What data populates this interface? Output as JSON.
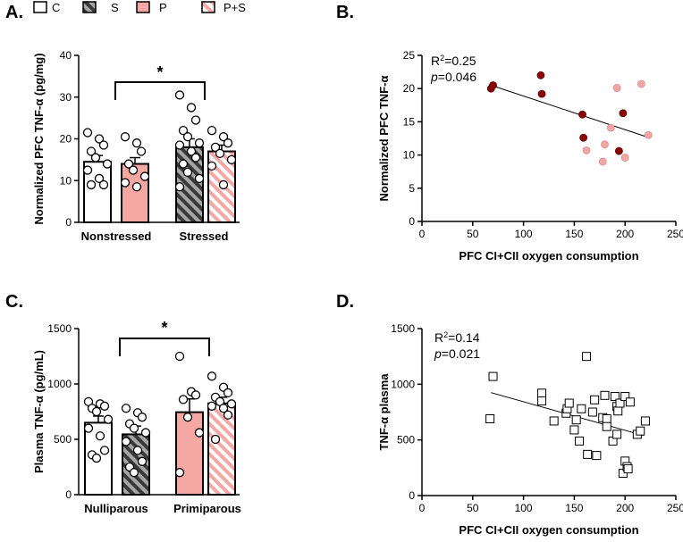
{
  "legend": [
    {
      "label": "C",
      "fill": "#ffffff",
      "pattern": "none"
    },
    {
      "label": "S",
      "fill": "#a6a6a6",
      "pattern": "hatch-dark"
    },
    {
      "label": "P",
      "fill": "#f4a7a3",
      "pattern": "none"
    },
    {
      "label": "P+S",
      "fill": "#f7b6b2",
      "pattern": "hatch-light"
    }
  ],
  "colors": {
    "dark_red": "#8b0000",
    "light_pink": "#f3a6a6",
    "salmon": "#f4a7a3",
    "grey": "#a6a6a6"
  },
  "chart_data": [
    {
      "panel": "A.",
      "type": "bar",
      "ylabel": "Normalized PFC TNF-α (pg/mg)",
      "ylim": [
        0,
        40
      ],
      "yticks": [
        0,
        10,
        20,
        30,
        40
      ],
      "groups": [
        "Nonstressed",
        "Stressed"
      ],
      "significance": "*",
      "bars": [
        {
          "group": "Nonstressed",
          "series": "C",
          "mean": 14.5,
          "sem": 1.5,
          "points": [
            21.5,
            20.0,
            18.5,
            17.0,
            15.5,
            14.0,
            12.5,
            10.5,
            9.0,
            9.0
          ]
        },
        {
          "group": "Nonstressed",
          "series": "P",
          "mean": 14.0,
          "sem": 1.5,
          "points": [
            20.5,
            19.0,
            17.0,
            14.0,
            12.5,
            11.0,
            9.5,
            8.5
          ]
        },
        {
          "group": "Stressed",
          "series": "S",
          "mean": 18.0,
          "sem": 2.0,
          "points": [
            30.5,
            27.5,
            24.5,
            22.0,
            20.5,
            19.0,
            18.5,
            17.0,
            15.5,
            14.0,
            12.0,
            10.5,
            8.5
          ]
        },
        {
          "group": "Stressed",
          "series": "P+S",
          "mean": 17.0,
          "sem": 1.5,
          "points": [
            22.0,
            20.5,
            19.0,
            18.0,
            16.5,
            15.0,
            13.5,
            9.0
          ]
        }
      ]
    },
    {
      "panel": "B.",
      "type": "scatter",
      "xlabel": "PFC CI+CII oxygen consumption",
      "ylabel": "Normalized PFC TNF-α",
      "xlim": [
        0,
        250
      ],
      "ylim": [
        0,
        25
      ],
      "xticks": [
        0,
        50,
        100,
        150,
        200,
        250
      ],
      "yticks": [
        0,
        5,
        10,
        15,
        20,
        25
      ],
      "stat_r2": "0.25",
      "stat_p": "0.046",
      "fit": {
        "x": [
          68,
          222
        ],
        "y": [
          20.5,
          12.7
        ]
      },
      "series": [
        {
          "name": "dark",
          "color": "#8b0000",
          "x": [
            68,
            70,
            117,
            118,
            158,
            159,
            194,
            198
          ],
          "y": [
            20.0,
            20.5,
            22.0,
            19.2,
            16.1,
            12.6,
            10.6,
            16.3
          ]
        },
        {
          "name": "light",
          "color": "#f3a6a6",
          "x": [
            162,
            178,
            180,
            186,
            192,
            200,
            216,
            223
          ],
          "y": [
            10.7,
            9.0,
            11.6,
            14.1,
            20.1,
            9.6,
            20.7,
            13.0
          ]
        }
      ]
    },
    {
      "panel": "C.",
      "type": "bar",
      "ylabel": "Plasma TNF-α (pg/mL)",
      "ylim": [
        0,
        1500
      ],
      "yticks": [
        0,
        500,
        1000,
        1500
      ],
      "groups": [
        "Nulliparous",
        "Primiparous"
      ],
      "significance": "*",
      "bars": [
        {
          "group": "Nulliparous",
          "series": "C",
          "mean": 650,
          "sem": 60,
          "points": [
            840,
            820,
            800,
            780,
            750,
            680,
            600,
            530,
            400,
            360,
            330
          ]
        },
        {
          "group": "Nulliparous",
          "series": "S",
          "mean": 545,
          "sem": 75,
          "points": [
            780,
            740,
            700,
            640,
            600,
            560,
            480,
            400,
            300,
            250,
            200
          ]
        },
        {
          "group": "Primiparous",
          "series": "P",
          "mean": 745,
          "sem": 120,
          "points": [
            1250,
            930,
            900,
            860,
            700,
            560,
            200
          ]
        },
        {
          "group": "Primiparous",
          "series": "P+S",
          "mean": 825,
          "sem": 55,
          "points": [
            1070,
            970,
            920,
            880,
            840,
            820,
            800,
            780,
            720,
            500
          ]
        }
      ]
    },
    {
      "panel": "D.",
      "type": "scatter",
      "xlabel": "PFC CI+CII oxygen consumption",
      "ylabel": "TNF-α plasma",
      "xlim": [
        0,
        250
      ],
      "ylim": [
        0,
        1500
      ],
      "xticks": [
        0,
        50,
        100,
        150,
        200,
        250
      ],
      "yticks": [
        0,
        500,
        1000,
        1500
      ],
      "stat_r2": "0.14",
      "stat_p": "0.021",
      "fit": {
        "x": [
          68,
          218
        ],
        "y": [
          925,
          540
        ]
      },
      "series": [
        {
          "name": "squares",
          "color": "#000000",
          "x": [
            67,
            70,
            118,
            118,
            130,
            142,
            143,
            145,
            150,
            152,
            155,
            157,
            162,
            163,
            168,
            170,
            172,
            178,
            180,
            182,
            182,
            188,
            190,
            192,
            192,
            193,
            195,
            198,
            200,
            200,
            202,
            203,
            205,
            212,
            215,
            220
          ],
          "y": [
            690,
            1070,
            920,
            850,
            670,
            740,
            780,
            830,
            590,
            680,
            490,
            780,
            1250,
            370,
            750,
            860,
            360,
            700,
            900,
            690,
            620,
            490,
            890,
            800,
            550,
            760,
            830,
            200,
            310,
            890,
            260,
            240,
            840,
            550,
            580,
            670
          ]
        }
      ]
    }
  ]
}
